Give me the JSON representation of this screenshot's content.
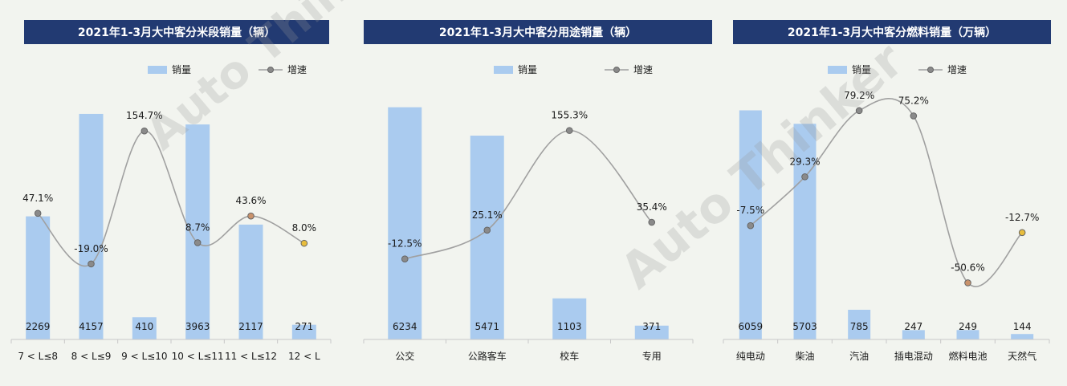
{
  "colors": {
    "title_bg": "#223a72",
    "bar": "#aacbef",
    "line": "#a0a0a0",
    "marker": "#8a8a8a",
    "marker_orange": "#c9926b",
    "marker_yellow": "#e8bd3c",
    "axis": "#c8c8c8",
    "text": "#1a1a1a"
  },
  "watermark": {
    "brand": "Auto Thinker"
  },
  "chart_data": [
    {
      "type": "bar",
      "title": "2021年1-3月大中客分米段销量（辆）",
      "legend": {
        "bar": "销量",
        "line": "增速",
        "placement": "top"
      },
      "categories": [
        "7 < L≤8",
        "8 < L≤9",
        "9 < L≤10",
        "10 < L≤11",
        "11 < L≤12",
        "12 < L"
      ],
      "values": [
        2269,
        4157,
        410,
        3963,
        2117,
        271
      ],
      "growth": [
        47.1,
        -19.0,
        154.7,
        8.7,
        43.6,
        8.0
      ],
      "growth_labels": [
        "47.1%",
        "-19.0%",
        "154.7%",
        "8.7%",
        "43.6%",
        "8.0%"
      ],
      "marker_colors": [
        "#8a8a8a",
        "#8a8a8a",
        "#8a8a8a",
        "#8a8a8a",
        "#c9926b",
        "#e8bd3c"
      ],
      "ylim": [
        0,
        4600
      ],
      "growth_range": [
        -60,
        200
      ]
    },
    {
      "type": "bar",
      "title": "2021年1-3月大中客分用途销量（辆）",
      "legend": {
        "bar": "销量",
        "line": "增速",
        "placement": "top"
      },
      "categories": [
        "公交",
        "公路客车",
        "校车",
        "专用"
      ],
      "values": [
        6234,
        5471,
        1103,
        371
      ],
      "growth": [
        -12.5,
        25.1,
        155.3,
        35.4
      ],
      "growth_labels": [
        "-12.5%",
        "25.1%",
        "155.3%",
        "35.4%"
      ],
      "marker_colors": [
        "#8a8a8a",
        "#8a8a8a",
        "#8a8a8a",
        "#8a8a8a"
      ],
      "ylim": [
        0,
        6700
      ],
      "growth_range": [
        -60,
        200
      ]
    },
    {
      "type": "bar",
      "title": "2021年1-3月大中客分燃料销量（万辆）",
      "legend": {
        "bar": "销量",
        "line": "增速",
        "placement": "top"
      },
      "categories": [
        "纯电动",
        "柴油",
        "汽油",
        "插电混动",
        "燃料电池",
        "天然气"
      ],
      "values": [
        6059,
        5703,
        785,
        247,
        249,
        144
      ],
      "growth": [
        -7.5,
        29.3,
        79.2,
        75.2,
        -50.6,
        -12.7
      ],
      "growth_labels": [
        "-7.5%",
        "29.3%",
        "79.2%",
        "75.2%",
        "-50.6%",
        "-12.7%"
      ],
      "marker_colors": [
        "#8a8a8a",
        "#8a8a8a",
        "#8a8a8a",
        "#8a8a8a",
        "#c9926b",
        "#e8bd3c"
      ],
      "ylim": [
        0,
        6600
      ],
      "growth_range": [
        -60,
        90
      ]
    }
  ]
}
